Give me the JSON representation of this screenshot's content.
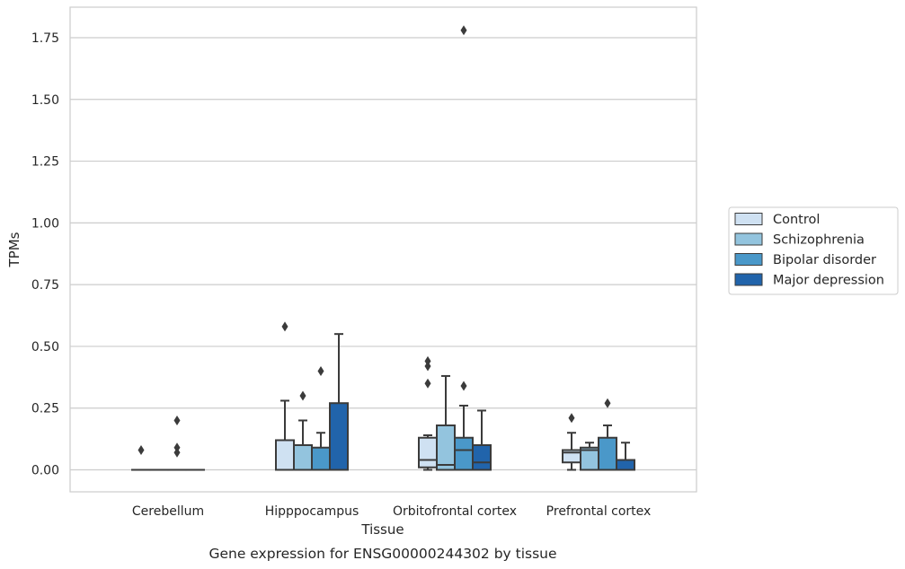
{
  "chart_data": {
    "type": "boxplot",
    "title": "Gene expression for ENSG00000244302 by tissue",
    "xlabel": "Tissue",
    "ylabel": "TPMs",
    "ylim": [
      -0.09,
      1.87
    ],
    "yticks": [
      0.0,
      0.25,
      0.5,
      0.75,
      1.0,
      1.25,
      1.5,
      1.75
    ],
    "ytick_labels": [
      "0.00",
      "0.25",
      "0.50",
      "0.75",
      "1.00",
      "1.25",
      "1.50",
      "1.75"
    ],
    "categories": [
      "Cerebellum",
      "Hipppocampus",
      "Orbitofrontal cortex",
      "Prefrontal cortex"
    ],
    "grid": "horizontal",
    "legend_position": "center-right, outside plot",
    "series": [
      {
        "name": "Control",
        "color": "#cfe1f2",
        "boxes": [
          {
            "min": 0.0,
            "q1": 0.0,
            "median": 0.0,
            "q3": 0.0,
            "max": 0.0,
            "outliers": [
              0.08
            ]
          },
          {
            "min": 0.0,
            "q1": 0.0,
            "median": 0.0,
            "q3": 0.12,
            "max": 0.28,
            "outliers": [
              0.58
            ]
          },
          {
            "min": 0.0,
            "q1": 0.01,
            "median": 0.04,
            "q3": 0.13,
            "max": 0.14,
            "outliers": [
              0.35,
              0.42,
              0.44
            ]
          },
          {
            "min": 0.0,
            "q1": 0.03,
            "median": 0.07,
            "q3": 0.08,
            "max": 0.15,
            "outliers": [
              0.21
            ]
          }
        ]
      },
      {
        "name": "Schizophrenia",
        "color": "#93c4de",
        "boxes": [
          {
            "min": 0.0,
            "q1": 0.0,
            "median": 0.0,
            "q3": 0.0,
            "max": 0.0,
            "outliers": []
          },
          {
            "min": 0.0,
            "q1": 0.0,
            "median": 0.0,
            "q3": 0.1,
            "max": 0.2,
            "outliers": [
              0.3
            ]
          },
          {
            "min": 0.0,
            "q1": 0.0,
            "median": 0.02,
            "q3": 0.18,
            "max": 0.38,
            "outliers": []
          },
          {
            "min": 0.0,
            "q1": 0.0,
            "median": 0.08,
            "q3": 0.09,
            "max": 0.11,
            "outliers": []
          }
        ]
      },
      {
        "name": "Bipolar disorder",
        "color": "#4a98c9",
        "boxes": [
          {
            "min": 0.0,
            "q1": 0.0,
            "median": 0.0,
            "q3": 0.0,
            "max": 0.0,
            "outliers": [
              0.07,
              0.09,
              0.2
            ]
          },
          {
            "min": 0.0,
            "q1": 0.0,
            "median": 0.0,
            "q3": 0.09,
            "max": 0.15,
            "outliers": [
              0.4
            ]
          },
          {
            "min": 0.0,
            "q1": 0.0,
            "median": 0.08,
            "q3": 0.13,
            "max": 0.26,
            "outliers": [
              0.34,
              1.78
            ]
          },
          {
            "min": 0.0,
            "q1": 0.0,
            "median": 0.0,
            "q3": 0.13,
            "max": 0.18,
            "outliers": [
              0.27
            ]
          }
        ]
      },
      {
        "name": "Major depression",
        "color": "#2164ab",
        "boxes": [
          {
            "min": 0.0,
            "q1": 0.0,
            "median": 0.0,
            "q3": 0.0,
            "max": 0.0,
            "outliers": []
          },
          {
            "min": 0.0,
            "q1": 0.0,
            "median": 0.0,
            "q3": 0.27,
            "max": 0.55,
            "outliers": []
          },
          {
            "min": 0.0,
            "q1": 0.0,
            "median": 0.03,
            "q3": 0.1,
            "max": 0.24,
            "outliers": []
          },
          {
            "min": 0.0,
            "q1": 0.0,
            "median": 0.0,
            "q3": 0.04,
            "max": 0.11,
            "outliers": []
          }
        ]
      }
    ]
  }
}
